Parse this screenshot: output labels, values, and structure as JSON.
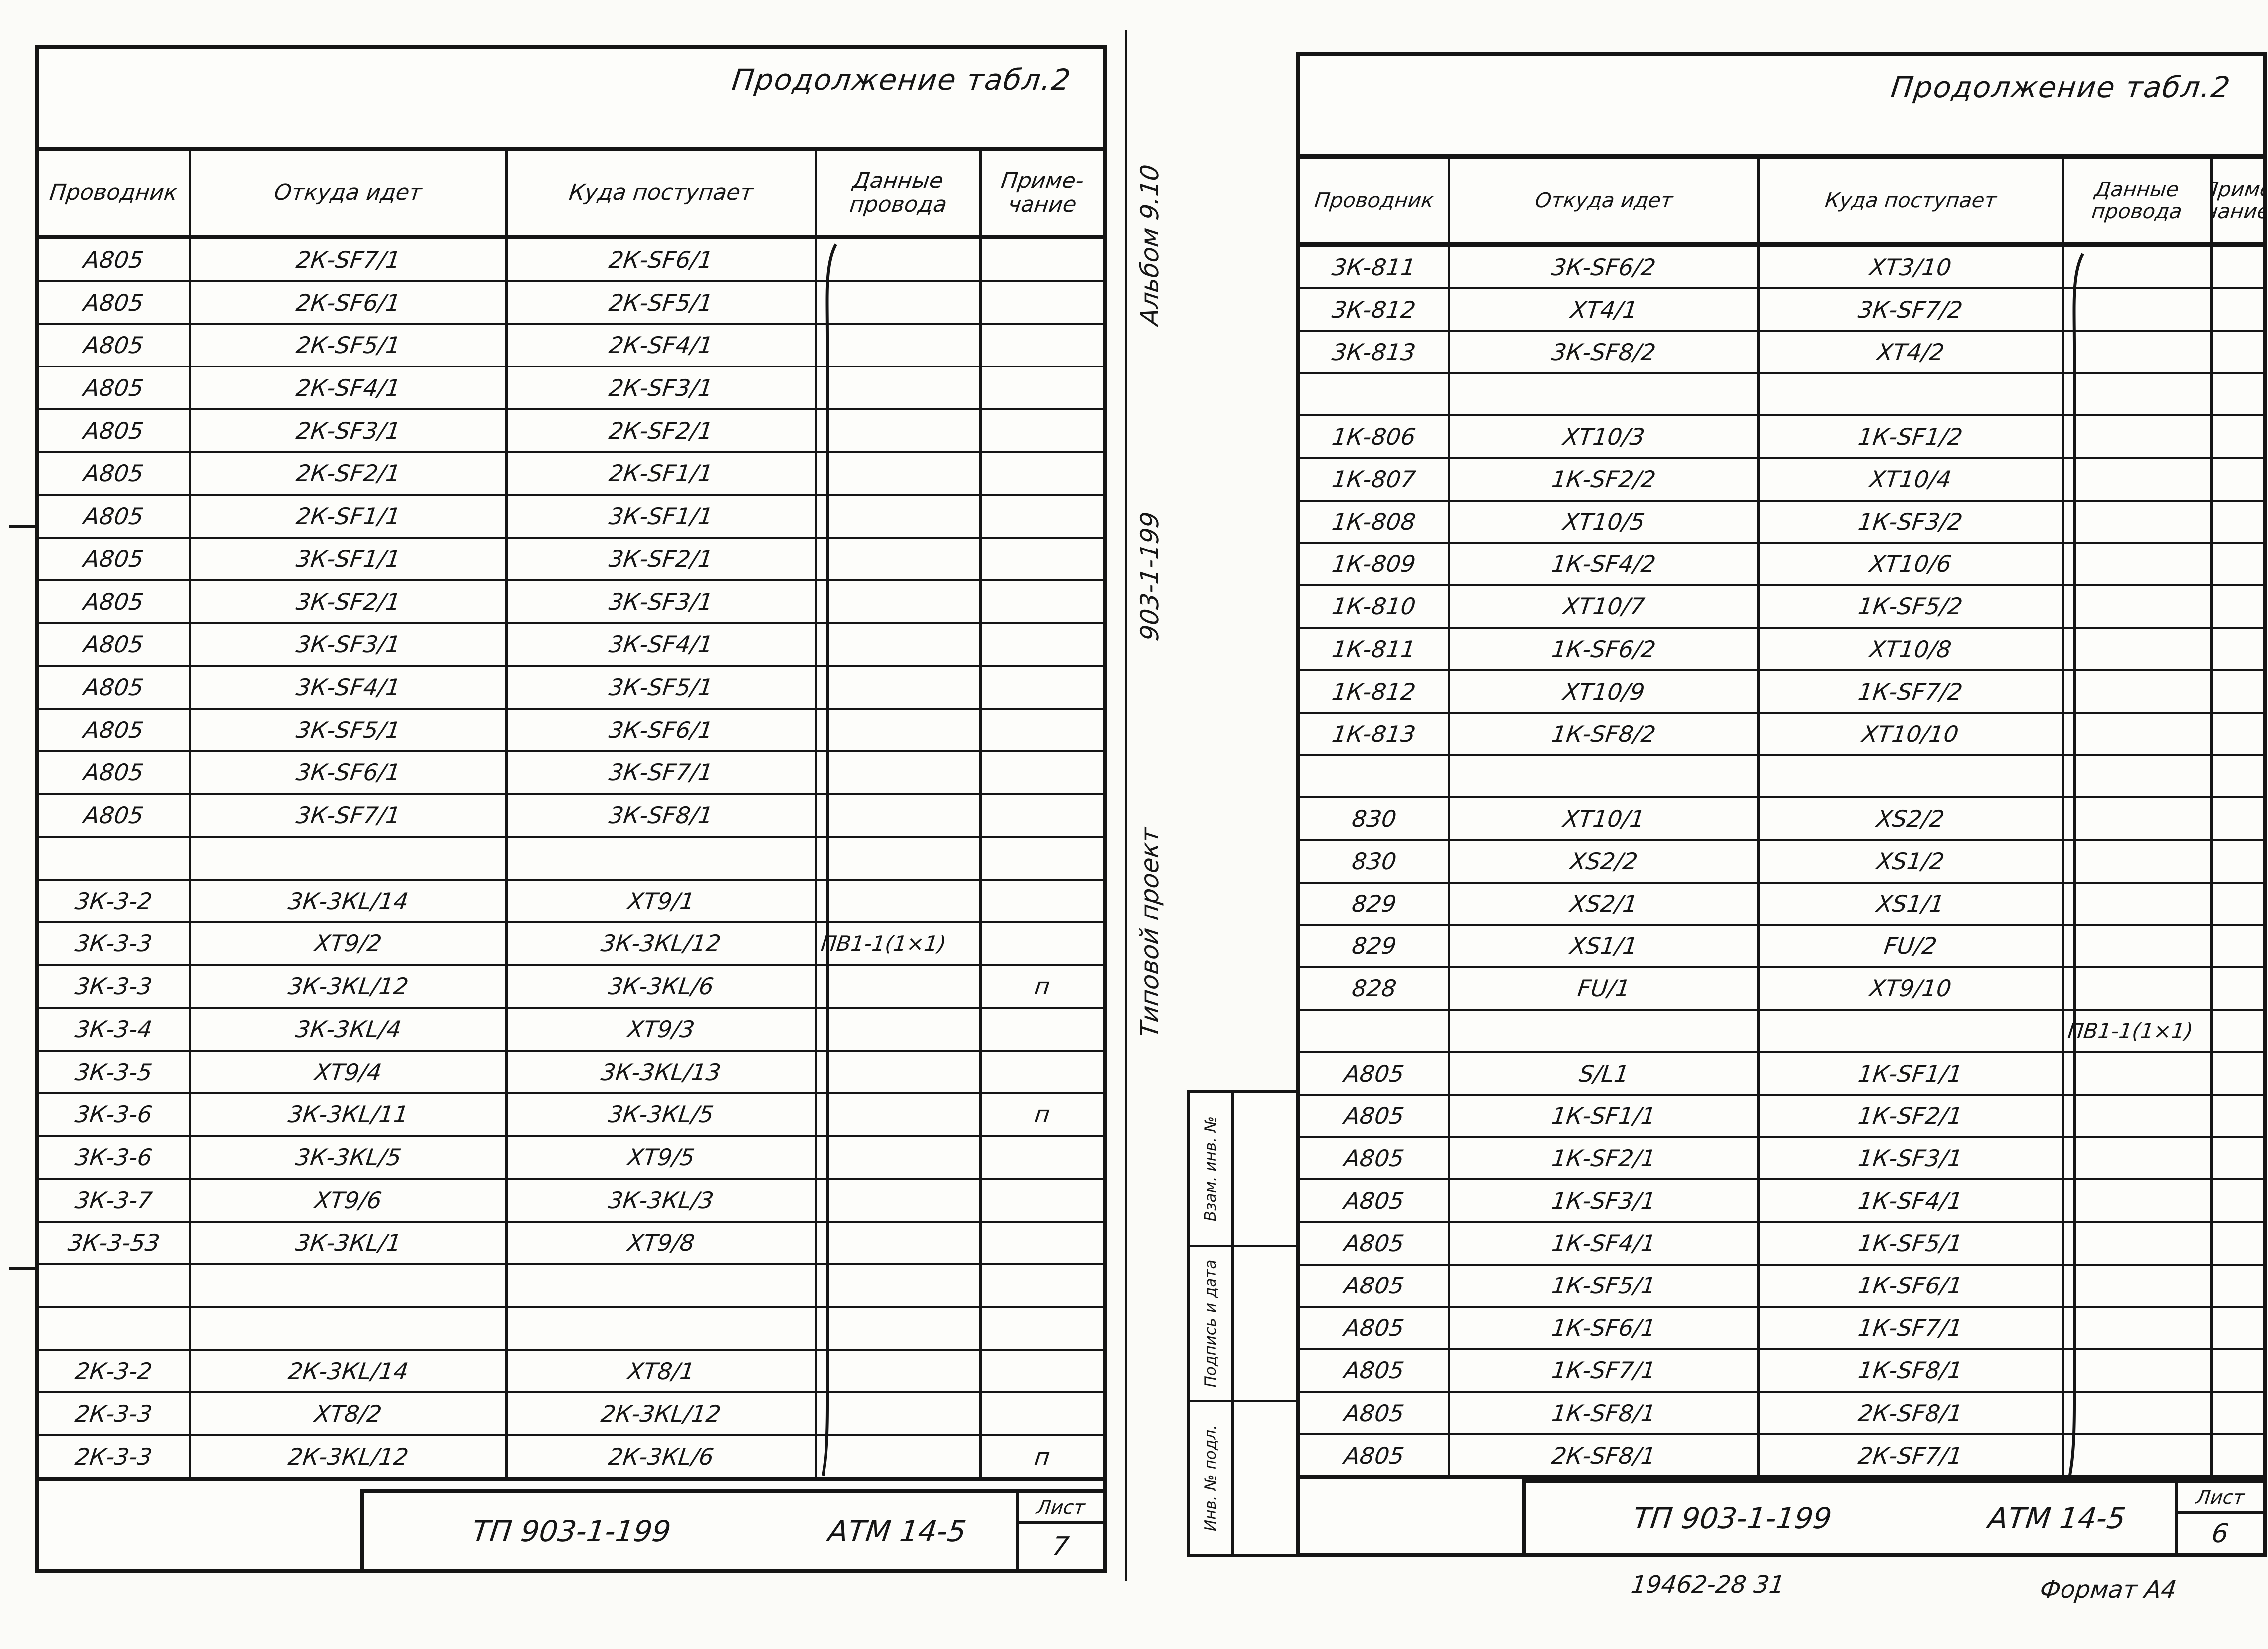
{
  "left_page": {
    "caption": "Продолжение табл.2",
    "columns": [
      [
        "Проводник"
      ],
      [
        "Откуда идет"
      ],
      [
        "Куда поступает"
      ],
      [
        "Данные",
        "провода"
      ],
      [
        "Приме-",
        "чание"
      ]
    ],
    "rows": [
      [
        "А805",
        "2К-SF7/1",
        "2К-SF6/1",
        "",
        ""
      ],
      [
        "А805",
        "2К-SF6/1",
        "2К-SF5/1",
        "",
        ""
      ],
      [
        "А805",
        "2К-SF5/1",
        "2К-SF4/1",
        "",
        ""
      ],
      [
        "А805",
        "2К-SF4/1",
        "2К-SF3/1",
        "",
        ""
      ],
      [
        "А805",
        "2К-SF3/1",
        "2К-SF2/1",
        "",
        ""
      ],
      [
        "А805",
        "2К-SF2/1",
        "2К-SF1/1",
        "",
        ""
      ],
      [
        "А805",
        "2К-SF1/1",
        "3К-SF1/1",
        "",
        ""
      ],
      [
        "А805",
        "3К-SF1/1",
        "3К-SF2/1",
        "",
        ""
      ],
      [
        "А805",
        "3К-SF2/1",
        "3К-SF3/1",
        "",
        ""
      ],
      [
        "А805",
        "3К-SF3/1",
        "3К-SF4/1",
        "",
        ""
      ],
      [
        "А805",
        "3К-SF4/1",
        "3К-SF5/1",
        "",
        ""
      ],
      [
        "А805",
        "3К-SF5/1",
        "3К-SF6/1",
        "",
        ""
      ],
      [
        "А805",
        "3К-SF6/1",
        "3К-SF7/1",
        "",
        ""
      ],
      [
        "А805",
        "3К-SF7/1",
        "3К-SF8/1",
        "",
        ""
      ],
      [
        "",
        "",
        "",
        "",
        ""
      ],
      [
        "3К-3-2",
        "3К-3КL/14",
        "ХТ9/1",
        "",
        ""
      ],
      [
        "3К-3-3",
        "ХТ9/2",
        "3К-3КL/12",
        "ПВ1-1(1×1)",
        ""
      ],
      [
        "3К-3-3",
        "3К-3КL/12",
        "3К-3КL/6",
        "",
        "п"
      ],
      [
        "3К-3-4",
        "3К-3КL/4",
        "ХТ9/3",
        "",
        ""
      ],
      [
        "3К-3-5",
        "ХТ9/4",
        "3К-3КL/13",
        "",
        ""
      ],
      [
        "3К-3-6",
        "3К-3КL/11",
        "3К-3КL/5",
        "",
        "п"
      ],
      [
        "3К-3-6",
        "3К-3КL/5",
        "ХТ9/5",
        "",
        ""
      ],
      [
        "3К-3-7",
        "ХТ9/6",
        "3К-3КL/3",
        "",
        ""
      ],
      [
        "3К-3-53",
        "3К-3КL/1",
        "ХТ9/8",
        "",
        ""
      ],
      [
        "",
        "",
        "",
        "",
        ""
      ],
      [
        "",
        "",
        "",
        "",
        ""
      ],
      [
        "2К-3-2",
        "2К-3КL/14",
        "ХТ8/1",
        "",
        ""
      ],
      [
        "2К-3-3",
        "ХТ8/2",
        "2К-3КL/12",
        "",
        ""
      ],
      [
        "2К-3-3",
        "2К-3КL/12",
        "2К-3КL/6",
        "",
        "п"
      ]
    ],
    "title_block": {
      "project": "ТП 903-1-199",
      "object": "АТМ 14-5",
      "sheet_label": "Лист",
      "sheet_number": "7"
    }
  },
  "right_page": {
    "caption": "Продолжение табл.2",
    "columns": [
      [
        "Проводник"
      ],
      [
        "Откуда идет"
      ],
      [
        "Куда поступает"
      ],
      [
        "Данные",
        "провода"
      ],
      [
        "Приме",
        "чание"
      ]
    ],
    "rows": [
      [
        "3К-811",
        "3К-SF6/2",
        "ХТ3/10",
        "",
        ""
      ],
      [
        "3К-812",
        "ХТ4/1",
        "3К-SF7/2",
        "",
        ""
      ],
      [
        "3К-813",
        "3К-SF8/2",
        "ХТ4/2",
        "",
        ""
      ],
      [
        "",
        "",
        "",
        "",
        ""
      ],
      [
        "1К-806",
        "ХТ10/3",
        "1К-SF1/2",
        "",
        ""
      ],
      [
        "1К-807",
        "1К-SF2/2",
        "ХТ10/4",
        "",
        ""
      ],
      [
        "1К-808",
        "ХТ10/5",
        "1К-SF3/2",
        "",
        ""
      ],
      [
        "1К-809",
        "1К-SF4/2",
        "ХТ10/6",
        "",
        ""
      ],
      [
        "1К-810",
        "ХТ10/7",
        "1К-SF5/2",
        "",
        ""
      ],
      [
        "1К-811",
        "1К-SF6/2",
        "ХТ10/8",
        "",
        ""
      ],
      [
        "1К-812",
        "ХТ10/9",
        "1К-SF7/2",
        "",
        ""
      ],
      [
        "1К-813",
        "1К-SF8/2",
        "ХТ10/10",
        "",
        ""
      ],
      [
        "",
        "",
        "",
        "",
        ""
      ],
      [
        "830",
        "ХТ10/1",
        "ХS2/2",
        "",
        ""
      ],
      [
        "830",
        "ХS2/2",
        "ХS1/2",
        "",
        ""
      ],
      [
        "829",
        "ХS2/1",
        "ХS1/1",
        "",
        ""
      ],
      [
        "829",
        "ХS1/1",
        "FU/2",
        "",
        ""
      ],
      [
        "828",
        "FU/1",
        "ХТ9/10",
        "",
        ""
      ],
      [
        "",
        "",
        "",
        "ПВ1-1(1×1)",
        ""
      ],
      [
        "А805",
        "S/L1",
        "1К-SF1/1",
        "",
        ""
      ],
      [
        "А805",
        "1К-SF1/1",
        "1К-SF2/1",
        "",
        ""
      ],
      [
        "А805",
        "1К-SF2/1",
        "1К-SF3/1",
        "",
        ""
      ],
      [
        "А805",
        "1К-SF3/1",
        "1К-SF4/1",
        "",
        ""
      ],
      [
        "А805",
        "1К-SF4/1",
        "1К-SF5/1",
        "",
        ""
      ],
      [
        "А805",
        "1К-SF5/1",
        "1К-SF6/1",
        "",
        ""
      ],
      [
        "А805",
        "1К-SF6/1",
        "1К-SF7/1",
        "",
        ""
      ],
      [
        "А805",
        "1К-SF7/1",
        "1К-SF8/1",
        "",
        ""
      ],
      [
        "А805",
        "1К-SF8/1",
        "2К-SF8/1",
        "",
        ""
      ],
      [
        "А805",
        "2К-SF8/1",
        "2К-SF7/1",
        "",
        ""
      ]
    ],
    "title_block": {
      "project": "ТП 903-1-199",
      "object": "АТМ 14-5",
      "sheet_label": "Лист",
      "sheet_number": "6"
    }
  },
  "gutter": {
    "rotated_note_parts": [
      "Типовой проект",
      "903-1-199",
      "Альбом 9.10"
    ],
    "stamp_cells": [
      "Инв. № подл.",
      "Подпись и дата",
      "Взам. инв. №"
    ]
  },
  "footer": {
    "doc_number": "19462-28  31",
    "format_label": "Формат А4"
  }
}
